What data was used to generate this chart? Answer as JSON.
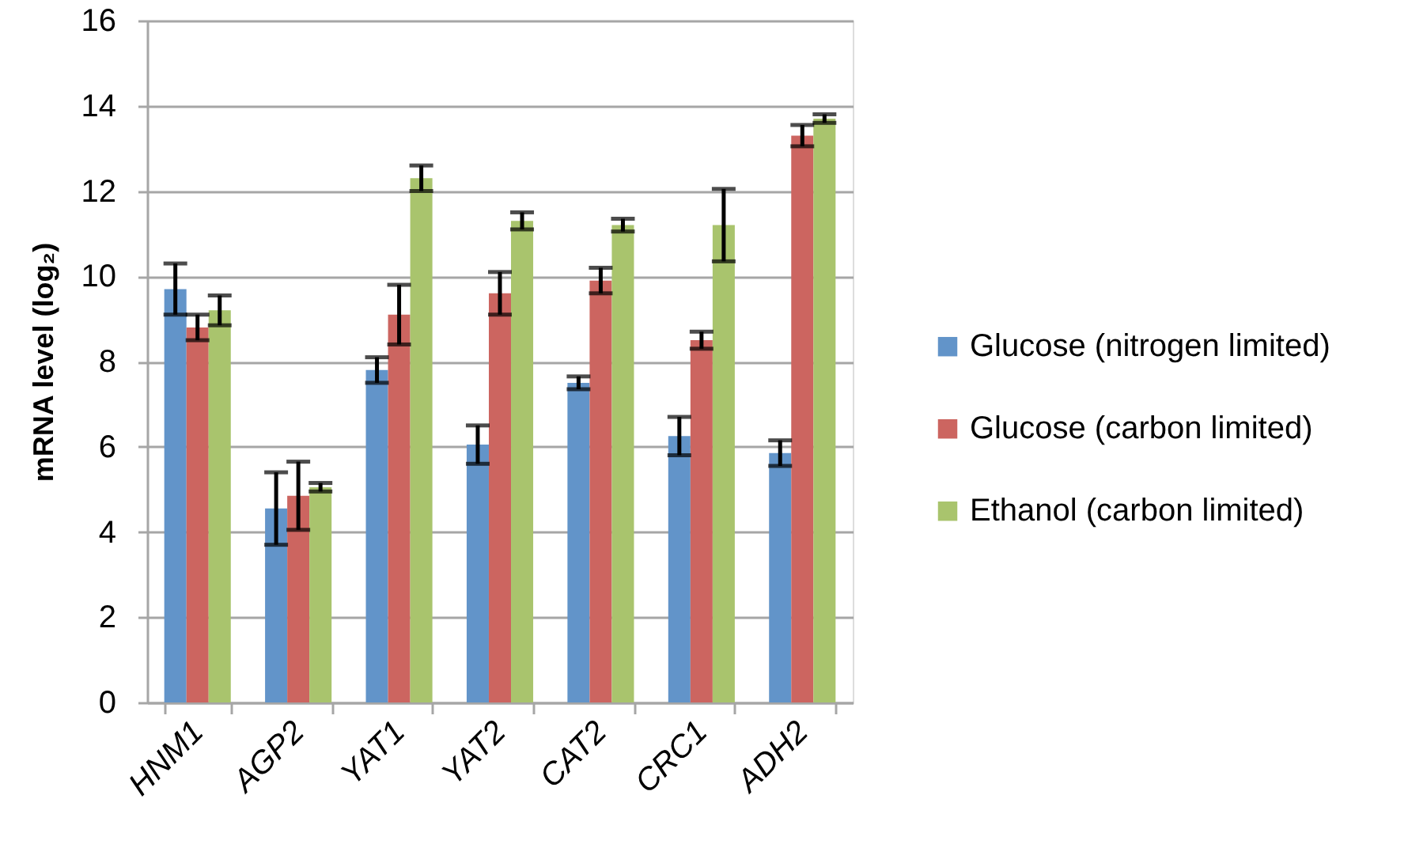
{
  "chart_data": {
    "type": "bar",
    "ylabel": "mRNA level (log₂)",
    "categories": [
      "HNM1",
      "AGP2",
      "YAT1",
      "YAT2",
      "CAT2",
      "CRC1",
      "ADH2"
    ],
    "series": [
      {
        "name": "Glucose (nitrogen limited)",
        "color": "#6294c9",
        "values": [
          9.7,
          4.55,
          7.8,
          6.05,
          7.5,
          6.25,
          5.85
        ],
        "errors": [
          0.6,
          0.85,
          0.3,
          0.45,
          0.15,
          0.45,
          0.3
        ]
      },
      {
        "name": "Glucose (carbon limited)",
        "color": "#cc6560",
        "values": [
          8.8,
          4.85,
          9.1,
          9.6,
          9.9,
          8.5,
          13.3
        ],
        "errors": [
          0.3,
          0.8,
          0.7,
          0.5,
          0.3,
          0.2,
          0.25
        ]
      },
      {
        "name": "Ethanol (carbon limited)",
        "color": "#a9c46d",
        "values": [
          9.2,
          5.05,
          12.3,
          11.3,
          11.2,
          11.2,
          13.7
        ],
        "errors": [
          0.35,
          0.1,
          0.3,
          0.2,
          0.15,
          0.85,
          0.1
        ]
      }
    ],
    "ylim": [
      0,
      16
    ],
    "yticks": [
      0,
      2,
      4,
      6,
      8,
      10,
      12,
      14,
      16
    ],
    "grid": "y",
    "legend": "right"
  }
}
